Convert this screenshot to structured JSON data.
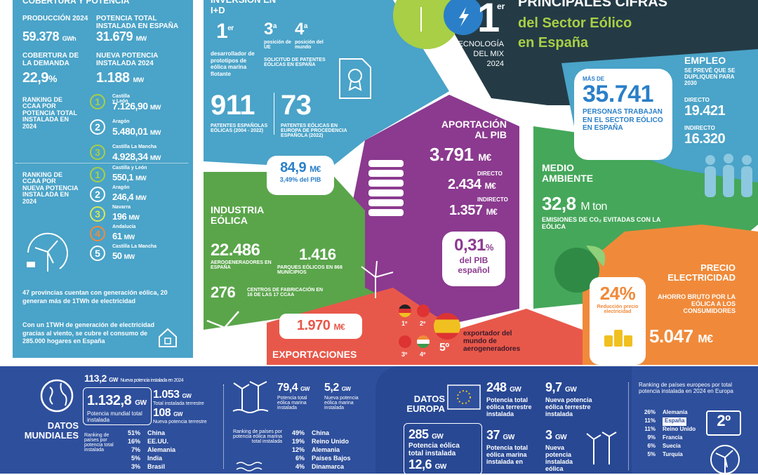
{
  "header": {
    "rank_number": "1",
    "rank_suffix": "er",
    "tech_label_1": "TECNOLOGÍA",
    "tech_label_2": "DEL MIX",
    "tech_label_3": "2024",
    "title_line1": "PRINCIPALES CIFRAS",
    "title_line2": "del Sector Eólico",
    "title_line3": "en España"
  },
  "cobertura": {
    "heading": "COBERTURA Y POTENCIA",
    "produccion_label": "PRODUCCIÓN 2024",
    "produccion_value": "59.378",
    "produccion_unit": "GWh",
    "potencia_total_label": "POTENCIA TOTAL INSTALADA EN ESPAÑA",
    "potencia_total_value": "31.679",
    "potencia_total_unit": "MW",
    "cobertura_label": "COBERTURA DE LA DEMANDA",
    "cobertura_value": "22,9",
    "cobertura_unit": "%",
    "nueva_potencia_label": "NUEVA POTENCIA INSTALADA 2024",
    "nueva_potencia_value": "1.188",
    "nueva_potencia_unit": "MW",
    "ranking_total_label": "RANKING DE CCAA POR POTENCIA TOTAL INSTALADA EN 2024",
    "ranking_total": [
      {
        "pos": "1",
        "region": "Castilla y León",
        "value": "7.126,90",
        "unit": "MW"
      },
      {
        "pos": "2",
        "region": "Aragón",
        "value": "5.480,01",
        "unit": "MW"
      },
      {
        "pos": "3",
        "region": "Castilla La Mancha",
        "value": "4.928,34",
        "unit": "MW"
      }
    ],
    "ranking_nueva_label": "RANKING DE CCAA POR NUEVA POTENCIA INSTALADA EN 2024",
    "ranking_nueva": [
      {
        "pos": "1",
        "region": "Castilla y León",
        "value": "550,1",
        "unit": "MW"
      },
      {
        "pos": "2",
        "region": "Aragón",
        "value": "246,4",
        "unit": "MW"
      },
      {
        "pos": "3",
        "region": "Navarra",
        "value": "196",
        "unit": "MW"
      },
      {
        "pos": "4",
        "region": "Andalucía",
        "value": "61",
        "unit": "MW"
      },
      {
        "pos": "5",
        "region": "Castilla La Mancha",
        "value": "50",
        "unit": "MW"
      }
    ],
    "provincias_text": "47 provincias cuentan con generación eólica, 20 generan más de 1TWh de electricidad",
    "hogares_text": "Con un 1TWH de generación de electricidad gracias al viento, se cubre el consumo de 285.000 hogares en España"
  },
  "innovacion": {
    "heading": "INVERSIÓN EN I+D",
    "rank1": "1",
    "rank1_sup": "er",
    "rank1_label": "desarrollador de prototipos de eólica marina flotante",
    "rank3": "3",
    "rank3_sup": "a",
    "rank3_label": "posición de UE",
    "rank4": "4",
    "rank4_sup": "a",
    "rank4_label": "posición del mundo",
    "solicitud_label": "SOLICITUD DE PATENTES EÓLICAS EN ESPAÑA",
    "patentes_value": "911",
    "patentes_label": "PATENTES ESPAÑOLAS EÓLICAS (2004 - 2022)",
    "patentes_eu_value": "73",
    "patentes_eu_label": "PATENTES EÓLICAS EN EUROPA DE PROCEDENCIA ESPAÑOLA (2022)",
    "inversion_value": "84,9",
    "inversion_unit": "M€",
    "inversion_pib": "3,49% del PIB"
  },
  "pib": {
    "heading": "APORTACIÓN AL PIB",
    "total_value": "3.791",
    "total_unit": "M€",
    "directo_label": "DIRECTO",
    "directo_value": "2.434",
    "directo_unit": "M€",
    "indirecto_label": "INDIRECTO",
    "indirecto_value": "1.357",
    "indirecto_unit": "M€",
    "pct_value": "0,31",
    "pct_unit": "%",
    "pct_label": "del PIB español"
  },
  "empleo": {
    "heading": "EMPLEO",
    "sub": "SE PREVÉ QUE SE DUPLIQUEN PARA 2030",
    "mas_de": "MÁS DE",
    "total_value": "35.741",
    "total_label": "PERSONAS TRABAJAN EN EL SECTOR EÓLICO EN ESPAÑA",
    "directo_label": "DIRECTO",
    "directo_value": "19.421",
    "indirecto_label": "INDIRECTO",
    "indirecto_value": "16.320"
  },
  "medio": {
    "heading": "MEDIO AMBIENTE",
    "value": "32,8",
    "unit": "M ton",
    "label": "EMISIONES DE CO₂ EVITADAS CON LA EÓLICA"
  },
  "industria": {
    "heading": "INDUSTRIA EÓLICA",
    "aero_value": "22.486",
    "aero_label": "AEROGENERADORES EN ESPAÑA",
    "parques_value": "1.416",
    "parques_label": "PARQUES EÓLICOS EN 868 MUNICIPIOS",
    "centros_value": "276",
    "centros_label": "CENTROS DE FABRICACIÓN EN 16 DE LAS 17 CCAA"
  },
  "precio": {
    "heading": "PRECIO ELECTRICIDAD",
    "pct": "24%",
    "pct_label": "Reducción precio electricidad",
    "ahorro_label": "AHORRO BRUTO POR LA EÓLICA A LOS CONSUMIDORES",
    "ahorro_value": "5.047",
    "ahorro_unit": "M€"
  },
  "exportaciones": {
    "value": "1.970",
    "unit": "M€",
    "label": "EXPORTACIONES",
    "flag1": "1º",
    "flag2": "2º",
    "flag3": "3º",
    "flag4": "4º",
    "rank": "5º",
    "rank_label": "exportador del mundo de aerogeneradores"
  },
  "mundiales": {
    "heading": "DATOS MUNDIALES",
    "nueva_value": "113,2",
    "nueva_unit": "GW",
    "nueva_label": "Nueva potencia instalada en 2024",
    "mundial_value": "1.132,8",
    "mundial_unit": "GW",
    "mundial_label": "Potencia mundial total instalada",
    "terrestre_value": "1.053",
    "terrestre_unit": "GW",
    "terrestre_label": "Total instalada terrestre",
    "nueva_terrestre_value": "108",
    "nueva_terrestre_unit": "GW",
    "nueva_terrestre_label": "Nueva potencia terrestre",
    "ranking_label": "Ranking de países por potencia total instalada",
    "ranking": [
      {
        "pct": "51%",
        "country": "China"
      },
      {
        "pct": "16%",
        "country": "EE.UU."
      },
      {
        "pct": "7%",
        "country": "Alemania"
      },
      {
        "pct": "5%",
        "country": "India"
      },
      {
        "pct": "3%",
        "country": "Brasil"
      }
    ],
    "marina_value": "79,4",
    "marina_unit": "GW",
    "marina_label": "Potencia total eólica marina instalada",
    "nueva_marina_value": "5,2",
    "nueva_marina_unit": "GW",
    "nueva_marina_label": "Nueva potencia eólica marina instalada",
    "ranking_marina_label": "Ranking de países por potencia eólica marina total instalada",
    "ranking_marina": [
      {
        "pct": "49%",
        "country": "China"
      },
      {
        "pct": "19%",
        "country": "Reino Unido"
      },
      {
        "pct": "12%",
        "country": "Alemania"
      },
      {
        "pct": "6%",
        "country": "Países Bajos"
      },
      {
        "pct": "4%",
        "country": "Dinamarca"
      }
    ]
  },
  "europa": {
    "heading": "DATOS EUROPA",
    "terrestre_value": "248",
    "terrestre_unit": "GW",
    "terrestre_label": "Potencia total eólica terrestre instalada",
    "nueva_terrestre_value": "9,7",
    "nueva_terrestre_unit": "GW",
    "nueva_terrestre_label": "Nueva potencia eólica terrestre instalada",
    "total_value": "285",
    "total_unit": "GW",
    "total_label": "Potencia eólica total instalada",
    "nueva_total_value": "12,6",
    "nueva_total_unit": "GW",
    "marina_value": "37",
    "marina_unit": "GW",
    "marina_label": "Potencia total eólica marina instalada en",
    "nueva_marina_value": "3",
    "nueva_marina_unit": "GW",
    "nueva_marina_label": "Nueva potencia instalada eólica",
    "ranking_label": "Ranking de países europeos por total potencia instalada en 2024 en Europa",
    "ranking": [
      {
        "pct": "26%",
        "country": "Alemania"
      },
      {
        "pct": "11%",
        "country": "España"
      },
      {
        "pct": "11%",
        "country": "Reino Unido"
      },
      {
        "pct": "9%",
        "country": "Francia"
      },
      {
        "pct": "6%",
        "country": "Suecia"
      },
      {
        "pct": "5%",
        "country": "Turquía"
      }
    ],
    "spain_rank": "2º"
  },
  "colors": {
    "blue": "#4aa3c8",
    "dark": "#243b46",
    "purple": "#8b3a8f",
    "green": "#3d9a4c",
    "lightgreen": "#6db85a",
    "orange": "#f08a3a",
    "red": "#e8584a",
    "navy": "#2e4f9c",
    "yellow": "#f0c020",
    "titlegreen": "#a8cf45"
  }
}
